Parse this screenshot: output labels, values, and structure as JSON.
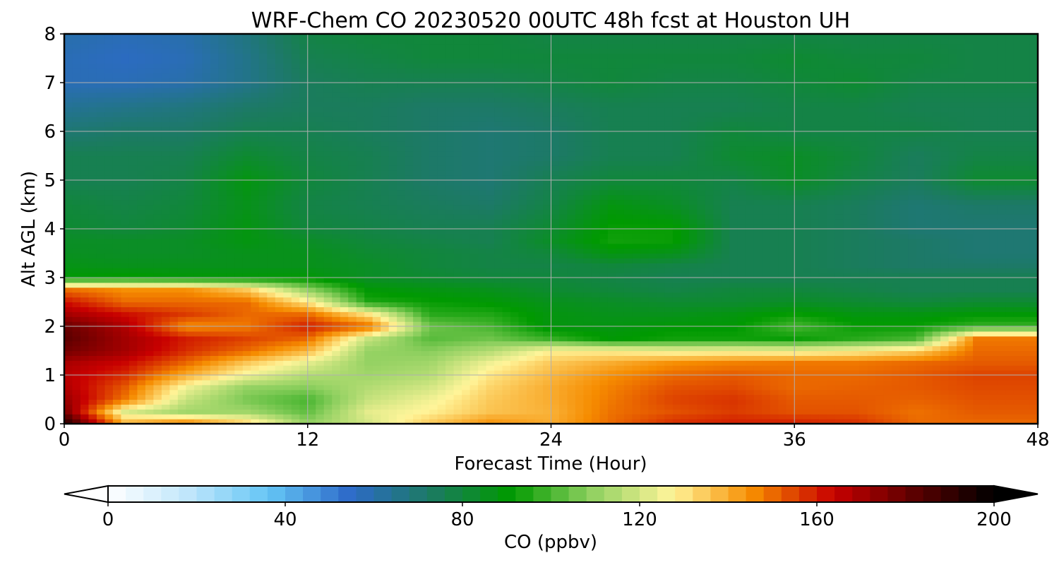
{
  "chart_data": {
    "type": "heatmap",
    "title": "WRF-Chem CO  20230520 00UTC 48h fcst at Houston UH",
    "xlabel": "Forecast Time (Hour)",
    "ylabel": "Alt AGL (km)",
    "x_ticks": [
      "0",
      "12",
      "24",
      "36",
      "48"
    ],
    "x_tick_values": [
      0,
      12,
      24,
      36,
      48
    ],
    "y_ticks": [
      "0",
      "1",
      "2",
      "3",
      "4",
      "5",
      "6",
      "7",
      "8"
    ],
    "y_tick_values": [
      0,
      1,
      2,
      3,
      4,
      5,
      6,
      7,
      8
    ],
    "xlim": [
      0,
      48
    ],
    "ylim": [
      0,
      8
    ],
    "grid": true,
    "colorbar": {
      "label": "CO  (ppbv)",
      "ticks": [
        "0",
        "40",
        "80",
        "120",
        "160",
        "200"
      ],
      "tick_values": [
        0,
        40,
        80,
        120,
        160,
        200
      ],
      "range": [
        0,
        200
      ],
      "extend": "both",
      "colors": [
        "#ffffff",
        "#bfe6fb",
        "#64c5f5",
        "#2d6ac9",
        "#1c7a63",
        "#009a00",
        "#8fd060",
        "#fff59a",
        "#f68c00",
        "#c80000",
        "#5c0000",
        "#000000"
      ]
    },
    "x": [
      0,
      3,
      6,
      9,
      12,
      15,
      18,
      21,
      24,
      27,
      30,
      33,
      36,
      39,
      42,
      45,
      48
    ],
    "y": [
      0,
      0.25,
      0.5,
      0.75,
      1.0,
      1.25,
      1.5,
      1.75,
      2.0,
      2.25,
      2.5,
      2.75,
      3.0,
      3.25,
      3.5,
      3.75,
      4.0,
      4.5,
      5.0,
      5.5,
      6.0,
      6.5,
      7.0,
      7.5,
      8.0
    ],
    "z": [
      [
        195,
        140,
        150,
        135,
        110,
        120,
        135,
        145,
        140,
        150,
        158,
        160,
        160,
        158,
        150,
        150,
        150
      ],
      [
        178,
        122,
        112,
        112,
        103,
        123,
        128,
        136,
        139,
        149,
        153,
        156,
        153,
        153,
        149,
        152,
        152
      ],
      [
        172,
        148,
        118,
        106,
        100,
        118,
        125,
        135,
        140,
        148,
        155,
        157,
        152,
        152,
        151,
        153,
        153
      ],
      [
        168,
        152,
        125,
        110,
        108,
        115,
        120,
        133,
        140,
        147,
        153,
        154,
        150,
        151,
        152,
        154,
        154
      ],
      [
        166,
        158,
        140,
        125,
        115,
        112,
        115,
        130,
        138,
        145,
        150,
        152,
        150,
        150,
        152,
        155,
        155
      ],
      [
        169,
        163,
        150,
        135,
        123,
        110,
        112,
        125,
        135,
        140,
        145,
        147,
        148,
        148,
        150,
        152,
        152
      ],
      [
        178,
        170,
        158,
        150,
        138,
        110,
        108,
        115,
        128,
        128,
        125,
        126,
        125,
        128,
        134,
        150,
        150
      ],
      [
        182,
        170,
        160,
        155,
        150,
        118,
        102,
        105,
        98,
        90,
        93,
        93,
        92,
        96,
        100,
        148,
        148
      ],
      [
        180,
        168,
        145,
        148,
        160,
        150,
        105,
        100,
        88,
        88,
        90,
        90,
        100,
        92,
        92,
        98,
        98
      ],
      [
        170,
        162,
        156,
        150,
        150,
        130,
        96,
        95,
        88,
        86,
        86,
        88,
        92,
        88,
        88,
        90,
        90
      ],
      [
        162,
        150,
        150,
        150,
        130,
        95,
        92,
        90,
        86,
        84,
        82,
        82,
        84,
        82,
        80,
        82,
        82
      ],
      [
        150,
        145,
        145,
        135,
        110,
        90,
        88,
        86,
        82,
        80,
        78,
        80,
        80,
        78,
        76,
        76,
        76
      ],
      [
        90,
        92,
        90,
        90,
        90,
        84,
        82,
        80,
        80,
        78,
        76,
        76,
        76,
        76,
        76,
        76,
        76
      ],
      [
        87,
        86,
        86,
        86,
        86,
        84,
        80,
        78,
        78,
        80,
        78,
        76,
        76,
        74,
        72,
        72,
        72
      ],
      [
        85,
        84,
        84,
        86,
        86,
        82,
        80,
        78,
        80,
        88,
        86,
        76,
        76,
        74,
        72,
        70,
        70
      ],
      [
        84,
        84,
        84,
        88,
        84,
        80,
        78,
        76,
        84,
        93,
        92,
        76,
        76,
        74,
        72,
        70,
        70
      ],
      [
        82,
        80,
        82,
        88,
        80,
        78,
        76,
        76,
        82,
        92,
        92,
        76,
        76,
        74,
        70,
        70,
        70
      ],
      [
        80,
        78,
        80,
        86,
        78,
        76,
        74,
        72,
        78,
        88,
        84,
        76,
        76,
        74,
        70,
        72,
        72
      ],
      [
        76,
        76,
        78,
        88,
        80,
        76,
        72,
        70,
        76,
        80,
        80,
        78,
        84,
        78,
        74,
        82,
        82
      ],
      [
        76,
        76,
        76,
        82,
        78,
        76,
        72,
        70,
        72,
        76,
        76,
        82,
        84,
        80,
        74,
        78,
        78
      ],
      [
        70,
        72,
        72,
        76,
        76,
        74,
        72,
        70,
        72,
        76,
        76,
        80,
        78,
        78,
        78,
        76,
        76
      ],
      [
        64,
        66,
        68,
        72,
        74,
        74,
        72,
        72,
        74,
        76,
        76,
        76,
        78,
        78,
        76,
        76,
        76
      ],
      [
        58,
        58,
        60,
        66,
        74,
        76,
        76,
        76,
        78,
        80,
        78,
        78,
        80,
        82,
        78,
        78,
        78
      ],
      [
        58,
        56,
        58,
        66,
        76,
        78,
        80,
        80,
        80,
        80,
        80,
        80,
        82,
        80,
        80,
        78,
        78
      ],
      [
        60,
        58,
        60,
        68,
        78,
        80,
        80,
        80,
        78,
        78,
        78,
        78,
        78,
        78,
        78,
        78,
        78
      ]
    ]
  }
}
